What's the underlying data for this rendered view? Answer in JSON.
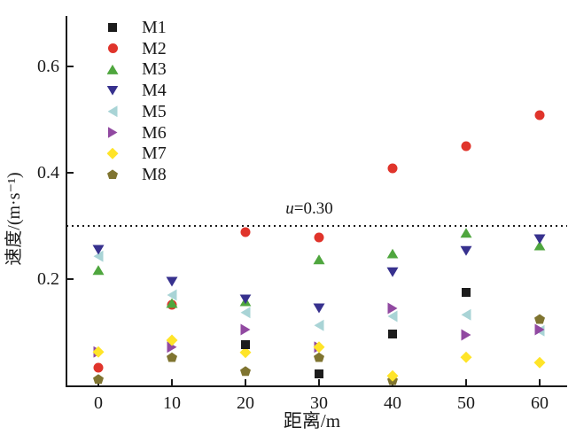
{
  "chart_data": {
    "type": "scatter",
    "title": "",
    "xlabel": "距离/m",
    "ylabel": "速度/(m·s⁻¹)",
    "x": [
      0,
      10,
      20,
      30,
      40,
      50,
      60
    ],
    "x_ticks": [
      {
        "v": 0,
        "label": "0"
      },
      {
        "v": 10,
        "label": "10"
      },
      {
        "v": 20,
        "label": "20"
      },
      {
        "v": 30,
        "label": "30"
      },
      {
        "v": 40,
        "label": "40"
      },
      {
        "v": 50,
        "label": "50"
      },
      {
        "v": 60,
        "label": "60"
      }
    ],
    "y_ticks": [
      {
        "v": 0.2,
        "label": "0.2"
      },
      {
        "v": 0.4,
        "label": "0.4"
      },
      {
        "v": 0.6,
        "label": "0.6"
      }
    ],
    "xlim": [
      -4.5,
      63.7
    ],
    "ylim": [
      0,
      0.695
    ],
    "grid": false,
    "legend_position": "upper-left-inside",
    "reference_line": {
      "y": 0.3,
      "label": "u=0.30",
      "var": "u",
      "value_text": "=0.30",
      "style": "dotted",
      "color": "#1a1a1a"
    },
    "series": [
      {
        "name": "M1",
        "marker": "square",
        "color": "#1c1c1c",
        "zorder": 5,
        "values": [
          null,
          null,
          0.077,
          0.022,
          0.097,
          0.175,
          null
        ]
      },
      {
        "name": "M2",
        "marker": "circle",
        "color": "#e0342b",
        "zorder": 1,
        "values": [
          0.033,
          0.152,
          0.288,
          0.278,
          0.408,
          0.45,
          0.508
        ]
      },
      {
        "name": "M3",
        "marker": "triangle-up",
        "color": "#4fa63e",
        "zorder": 2,
        "values": [
          0.217,
          0.155,
          0.158,
          0.237,
          0.248,
          0.287,
          0.263
        ]
      },
      {
        "name": "M4",
        "marker": "triangle-down",
        "color": "#37318e",
        "zorder": 3,
        "values": [
          0.255,
          0.195,
          0.162,
          0.145,
          0.213,
          0.253,
          0.275
        ]
      },
      {
        "name": "M5",
        "marker": "triangle-left",
        "color": "#a9d4d6",
        "zorder": 2,
        "values": [
          0.243,
          0.17,
          0.137,
          0.113,
          0.13,
          0.133,
          0.103
        ]
      },
      {
        "name": "M6",
        "marker": "triangle-right",
        "color": "#9149a1",
        "zorder": 3,
        "values": [
          0.063,
          0.072,
          0.105,
          0.072,
          0.145,
          0.095,
          0.105
        ]
      },
      {
        "name": "M7",
        "marker": "diamond",
        "color": "#ffe428",
        "zorder": 4,
        "values": [
          0.063,
          0.085,
          0.062,
          0.072,
          0.018,
          0.053,
          0.043
        ]
      },
      {
        "name": "M8",
        "marker": "pentagon",
        "color": "#7f7430",
        "zorder": 1,
        "values": [
          0.012,
          0.053,
          0.027,
          0.053,
          0.01,
          null,
          0.125
        ]
      }
    ]
  }
}
